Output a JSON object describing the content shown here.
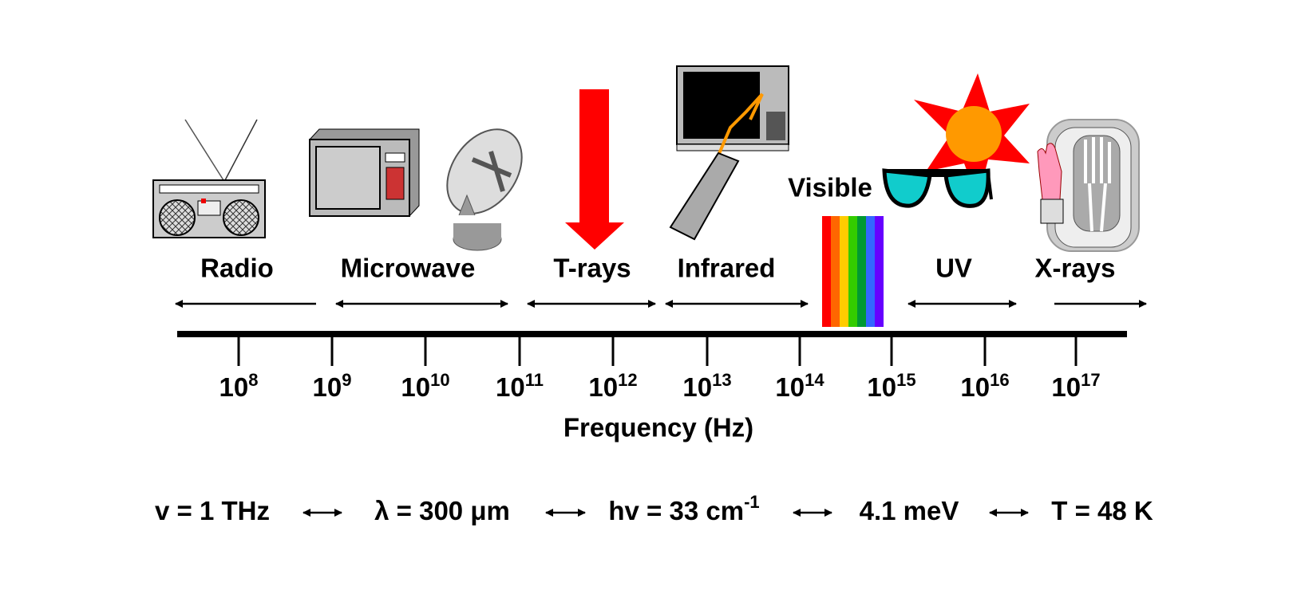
{
  "bands": [
    "Radio",
    "Microwave",
    "T-rays",
    "Infrared",
    "Visible",
    "UV",
    "X-rays"
  ],
  "ticks": [
    {
      "base": "10",
      "exponent": "8"
    },
    {
      "base": "10",
      "exponent": "9"
    },
    {
      "base": "10",
      "exponent": "10"
    },
    {
      "base": "10",
      "exponent": "11"
    },
    {
      "base": "10",
      "exponent": "12"
    },
    {
      "base": "10",
      "exponent": "13"
    },
    {
      "base": "10",
      "exponent": "14"
    },
    {
      "base": "10",
      "exponent": "15"
    },
    {
      "base": "10",
      "exponent": "16"
    },
    {
      "base": "10",
      "exponent": "17"
    }
  ],
  "axis_label": "Frequency (Hz)",
  "conversions": [
    {
      "text": "v = 1 THz"
    },
    {
      "text": "λ = 300 μm"
    },
    {
      "text": "hv = 33 cm",
      "superscript": "-1"
    },
    {
      "text": "4.1 meV"
    },
    {
      "text": "T = 48 K"
    }
  ]
}
